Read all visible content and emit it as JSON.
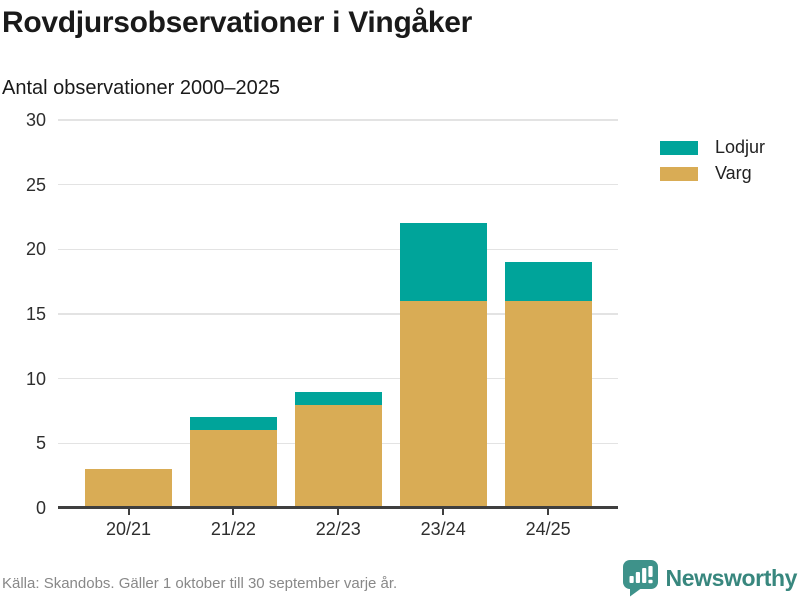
{
  "chart_data": {
    "type": "bar",
    "stacked": true,
    "title": "Rovdjursobservationer i Vingåker",
    "subtitle": "Antal observationer 2000–2025",
    "categories": [
      "20/21",
      "21/22",
      "22/23",
      "23/24",
      "24/25"
    ],
    "series": [
      {
        "name": "Lodjur",
        "color": "#00a49a",
        "values": [
          0,
          1,
          1,
          6,
          3
        ]
      },
      {
        "name": "Varg",
        "color": "#d9ac55",
        "values": [
          3,
          6,
          8,
          16,
          16
        ]
      }
    ],
    "totals": [
      3,
      7,
      9,
      22,
      19
    ],
    "xlabel": "",
    "ylabel": "Antal observationer",
    "ylim": [
      0,
      30
    ],
    "yticks": [
      0,
      5,
      10,
      15,
      20,
      25,
      30
    ],
    "grid": true,
    "legend_position": "top-right",
    "gridline_color": "#e3e3e3",
    "axis_color": "#3f3f3f"
  },
  "footer": {
    "source": "Källa: Skandobs. Gäller 1 oktober till 30 september varje år.",
    "brand_name": "Newsworthy",
    "brand_color": "#38877e"
  }
}
